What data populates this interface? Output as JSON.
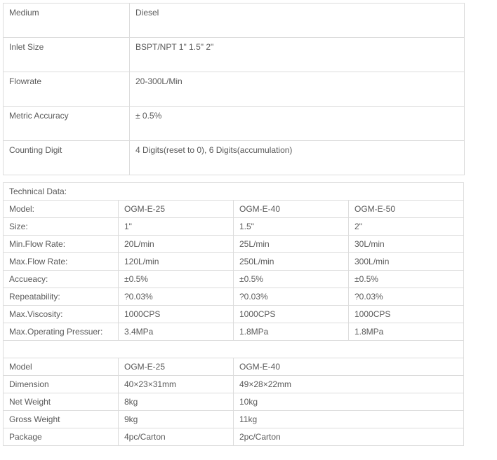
{
  "general": {
    "rows": [
      {
        "label": "Medium",
        "value": "Diesel"
      },
      {
        "label": "Inlet Size",
        "value": "BSPT/NPT 1\" 1.5\" 2\""
      },
      {
        "label": "Flowrate",
        "value": "20-300L/Min"
      },
      {
        "label": "Metric Accuracy",
        "value": "± 0.5%"
      },
      {
        "label": "Counting Digit",
        "value": "4 Digits(reset to 0), 6 Digits(accumulation)"
      }
    ]
  },
  "tech": {
    "heading": "Technical Data:",
    "rows": [
      {
        "label": "Model:",
        "c1": "OGM-E-25",
        "c2": "OGM-E-40",
        "c3": "OGM-E-50"
      },
      {
        "label": "Size:",
        "c1": "1\"",
        "c2": "1.5\"",
        "c3": "2\""
      },
      {
        "label": "Min.Flow Rate:",
        "c1": "20L/min",
        "c2": "25L/min",
        "c3": "30L/min"
      },
      {
        "label": "Max.Flow Rate:",
        "c1": "120L/min",
        "c2": "250L/min",
        "c3": "300L/min"
      },
      {
        "label": "Accueacy:",
        "c1": "±0.5%",
        "c2": "±0.5%",
        "c3": "±0.5%"
      },
      {
        "label": "Repeatability:",
        "c1": "?0.03%",
        "c2": "?0.03%",
        "c3": "?0.03%"
      },
      {
        "label": "Max.Viscosity:",
        "c1": "1000CPS",
        "c2": "1000CPS",
        "c3": "1000CPS"
      },
      {
        "label": "Max.Operating Pressuer:",
        "c1": "3.4MPa",
        "c2": "1.8MPa",
        "c3": "1.8MPa"
      }
    ]
  },
  "pack": {
    "rows": [
      {
        "label": " Model",
        "c1": "OGM-E-25",
        "c2": "OGM-E-40"
      },
      {
        "label": " Dimension",
        "c1": "40×23×31mm",
        "c2": "49×28×22mm"
      },
      {
        "label": " Net Weight",
        "c1": "8kg",
        "c2": "10kg"
      },
      {
        "label": " Gross Weight",
        "c1": "9kg",
        "c2": "11kg"
      },
      {
        "label": " Package",
        "c1": "4pc/Carton",
        "c2": "2pc/Carton"
      }
    ]
  },
  "style": {
    "border_color": "#dcdcdc",
    "text_color": "#5a5a5a",
    "background": "#ffffff",
    "font_size": 12
  }
}
